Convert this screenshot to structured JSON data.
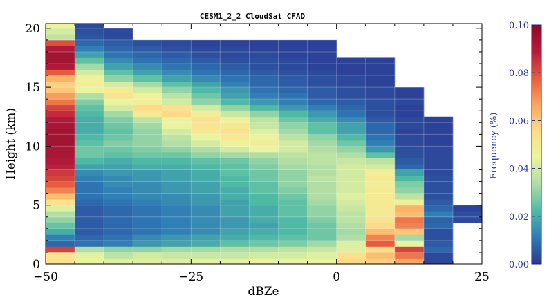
{
  "chart_data": {
    "type": "heatmap",
    "title": "CESM1_2_2 CloudSat CFAD",
    "xlabel": "dBZe",
    "ylabel": "Height (km)",
    "colorbar_label": "Frequency (%)",
    "xlim": [
      -50,
      25
    ],
    "ylim": [
      0,
      20.4
    ],
    "xticks": [
      -50,
      -25,
      0,
      25
    ],
    "xtick_labels": [
      "−50",
      "−25",
      "0",
      "25"
    ],
    "yticks": [
      0,
      5,
      10,
      15,
      20
    ],
    "ytick_labels": [
      "0",
      "5",
      "10",
      "15",
      "20"
    ],
    "colorbar_ticks": [
      0.0,
      0.02,
      0.04,
      0.06,
      0.08,
      0.1
    ],
    "colorbar_tick_labels": [
      "0.00",
      "0.02",
      "0.04",
      "0.06",
      "0.08",
      "0.10"
    ],
    "vmin": 0.0,
    "vmax": 0.1,
    "colormap": "Spectral_r",
    "colormap_stops": [
      "#2b3691",
      "#2e7bb6",
      "#4fbaa5",
      "#aedda5",
      "#ebf59e",
      "#fedc8a",
      "#fba65f",
      "#e65d3f",
      "#b51b3d",
      "#8a0b25"
    ],
    "x_bin_edges": [
      -50,
      -45,
      -40,
      -35,
      -30,
      -25,
      -20,
      -15,
      -10,
      -5,
      0,
      5,
      10,
      15,
      20,
      25
    ],
    "y_bin_edges": [
      0,
      0.5,
      1,
      1.5,
      2,
      2.5,
      3,
      3.5,
      4,
      4.5,
      5,
      5.5,
      6,
      6.5,
      7,
      7.5,
      8,
      8.5,
      9,
      9.5,
      10,
      10.5,
      11,
      11.5,
      12,
      12.5,
      13,
      13.5,
      14,
      14.5,
      15,
      15.5,
      16,
      16.5,
      17,
      17.5,
      18,
      18.5,
      19,
      19.5,
      20,
      20.5
    ],
    "values": [
      [
        0.054,
        0.044,
        0.042,
        0.042,
        0.042,
        0.043,
        0.043,
        0.044,
        0.044,
        0.044,
        0.056,
        0.058,
        0.066,
        0.003,
        null
      ],
      [
        0.052,
        0.043,
        0.036,
        0.04,
        0.038,
        0.038,
        0.038,
        0.04,
        0.04,
        0.042,
        0.054,
        0.062,
        0.074,
        0.003,
        null
      ],
      [
        0.082,
        0.034,
        0.03,
        0.03,
        0.032,
        0.032,
        0.034,
        0.034,
        0.036,
        0.038,
        0.042,
        0.055,
        0.082,
        0.008,
        null
      ],
      [
        0.008,
        0.01,
        0.012,
        0.016,
        0.018,
        0.02,
        0.024,
        0.026,
        0.028,
        0.032,
        0.042,
        0.078,
        0.044,
        0.006,
        null
      ],
      [
        0.012,
        0.008,
        0.01,
        0.014,
        0.016,
        0.018,
        0.02,
        0.022,
        0.024,
        0.026,
        0.034,
        0.072,
        0.032,
        0.004,
        null
      ],
      [
        0.02,
        0.006,
        0.008,
        0.01,
        0.012,
        0.014,
        0.018,
        0.02,
        0.022,
        0.026,
        0.032,
        0.062,
        0.06,
        0.004,
        null
      ],
      [
        0.025,
        0.006,
        0.008,
        0.01,
        0.012,
        0.014,
        0.016,
        0.018,
        0.022,
        0.026,
        0.034,
        0.056,
        0.072,
        0.008,
        null
      ],
      [
        0.03,
        0.006,
        0.008,
        0.01,
        0.012,
        0.014,
        0.016,
        0.02,
        0.022,
        0.028,
        0.036,
        0.052,
        0.074,
        0.007,
        0.003
      ],
      [
        0.034,
        0.006,
        0.008,
        0.01,
        0.012,
        0.014,
        0.018,
        0.02,
        0.024,
        0.03,
        0.036,
        0.05,
        0.062,
        0.012,
        0.004
      ],
      [
        0.042,
        0.006,
        0.008,
        0.01,
        0.012,
        0.014,
        0.018,
        0.02,
        0.024,
        0.03,
        0.038,
        0.05,
        0.064,
        0.008,
        0.002
      ],
      [
        0.054,
        0.008,
        0.01,
        0.012,
        0.014,
        0.016,
        0.018,
        0.022,
        0.024,
        0.032,
        0.04,
        0.05,
        0.048,
        0.006,
        null
      ],
      [
        0.062,
        0.01,
        0.012,
        0.014,
        0.014,
        0.016,
        0.02,
        0.022,
        0.026,
        0.034,
        0.042,
        0.05,
        0.036,
        0.004,
        null
      ],
      [
        0.072,
        0.01,
        0.012,
        0.014,
        0.016,
        0.018,
        0.02,
        0.024,
        0.028,
        0.034,
        0.04,
        0.05,
        0.03,
        0.004,
        null
      ],
      [
        0.078,
        0.01,
        0.014,
        0.014,
        0.016,
        0.018,
        0.022,
        0.024,
        0.03,
        0.034,
        0.04,
        0.048,
        0.028,
        0.004,
        null
      ],
      [
        0.082,
        0.012,
        0.014,
        0.016,
        0.018,
        0.02,
        0.022,
        0.026,
        0.03,
        0.036,
        0.04,
        0.05,
        0.022,
        0.004,
        null
      ],
      [
        0.084,
        0.014,
        0.016,
        0.016,
        0.018,
        0.02,
        0.024,
        0.026,
        0.03,
        0.034,
        0.04,
        0.048,
        0.018,
        0.003,
        null
      ],
      [
        0.088,
        0.018,
        0.018,
        0.02,
        0.02,
        0.022,
        0.024,
        0.028,
        0.032,
        0.034,
        0.04,
        0.04,
        0.008,
        0.003,
        null
      ],
      [
        0.09,
        0.022,
        0.02,
        0.022,
        0.022,
        0.024,
        0.026,
        0.03,
        0.034,
        0.036,
        0.038,
        0.036,
        0.006,
        0.003,
        null
      ],
      [
        0.092,
        0.026,
        0.024,
        0.026,
        0.026,
        0.03,
        0.032,
        0.034,
        0.036,
        0.036,
        0.034,
        0.024,
        0.004,
        0.003,
        null
      ],
      [
        0.092,
        0.026,
        0.026,
        0.028,
        0.03,
        0.034,
        0.04,
        0.044,
        0.04,
        0.034,
        0.03,
        0.016,
        0.004,
        0.003,
        null
      ],
      [
        0.094,
        0.024,
        0.028,
        0.03,
        0.034,
        0.04,
        0.046,
        0.048,
        0.04,
        0.032,
        0.026,
        0.012,
        0.003,
        0.002,
        null
      ],
      [
        0.094,
        0.022,
        0.026,
        0.03,
        0.036,
        0.044,
        0.05,
        0.046,
        0.036,
        0.03,
        0.022,
        0.01,
        0.003,
        0.002,
        null
      ],
      [
        0.094,
        0.02,
        0.024,
        0.03,
        0.04,
        0.05,
        0.054,
        0.042,
        0.032,
        0.024,
        0.018,
        0.008,
        0.002,
        0.002,
        null
      ],
      [
        0.092,
        0.02,
        0.026,
        0.032,
        0.044,
        0.052,
        0.05,
        0.038,
        0.03,
        0.024,
        0.018,
        0.008,
        0.003,
        0.002,
        null
      ],
      [
        0.09,
        0.02,
        0.028,
        0.036,
        0.046,
        0.054,
        0.046,
        0.036,
        0.026,
        0.02,
        0.014,
        0.006,
        0.003,
        0.002,
        null
      ],
      [
        0.086,
        0.022,
        0.032,
        0.05,
        0.056,
        0.048,
        0.038,
        0.03,
        0.022,
        0.016,
        0.01,
        0.004,
        0.002,
        null,
        null
      ],
      [
        0.082,
        0.024,
        0.04,
        0.056,
        0.054,
        0.04,
        0.03,
        0.022,
        0.016,
        0.012,
        0.008,
        0.004,
        0.002,
        null,
        null
      ],
      [
        0.074,
        0.028,
        0.044,
        0.048,
        0.04,
        0.03,
        0.022,
        0.016,
        0.012,
        0.008,
        0.006,
        0.004,
        0.003,
        null,
        null
      ],
      [
        0.068,
        0.034,
        0.052,
        0.046,
        0.036,
        0.026,
        0.018,
        0.012,
        0.01,
        0.006,
        0.004,
        0.003,
        0.002,
        null,
        null
      ],
      [
        0.06,
        0.044,
        0.05,
        0.04,
        0.03,
        0.022,
        0.016,
        0.01,
        0.008,
        0.006,
        0.004,
        0.003,
        0.002,
        null,
        null
      ],
      [
        0.058,
        0.048,
        0.04,
        0.032,
        0.024,
        0.018,
        0.012,
        0.008,
        0.006,
        0.004,
        0.003,
        0.002,
        null,
        null,
        null
      ],
      [
        0.064,
        0.046,
        0.03,
        0.024,
        0.018,
        0.014,
        0.01,
        0.008,
        0.006,
        0.004,
        0.003,
        0.002,
        null,
        null,
        null
      ],
      [
        0.078,
        0.04,
        0.024,
        0.018,
        0.014,
        0.01,
        0.008,
        0.006,
        0.004,
        0.003,
        0.002,
        0.002,
        null,
        null,
        null
      ],
      [
        0.09,
        0.032,
        0.018,
        0.014,
        0.01,
        0.008,
        0.006,
        0.004,
        0.003,
        0.002,
        0.002,
        0.002,
        null,
        null,
        null
      ],
      [
        0.094,
        0.024,
        0.014,
        0.01,
        0.008,
        0.006,
        0.004,
        0.004,
        0.003,
        0.002,
        0.002,
        0.002,
        null,
        null,
        null
      ],
      [
        0.094,
        0.018,
        0.01,
        0.008,
        0.006,
        0.004,
        0.003,
        0.003,
        0.002,
        0.002,
        null,
        null,
        null,
        null,
        null
      ],
      [
        0.09,
        0.012,
        0.008,
        0.006,
        0.004,
        0.003,
        0.003,
        0.002,
        0.002,
        0.002,
        null,
        null,
        null,
        null,
        null
      ],
      [
        0.08,
        0.008,
        0.006,
        0.004,
        0.003,
        0.002,
        0.002,
        0.002,
        0.002,
        0.002,
        null,
        null,
        null,
        null,
        null
      ],
      [
        0.036,
        0.005,
        0.003,
        null,
        null,
        null,
        null,
        null,
        null,
        null,
        null,
        null,
        null,
        null,
        null
      ],
      [
        0.04,
        0.004,
        0.003,
        null,
        null,
        null,
        null,
        null,
        null,
        null,
        null,
        null,
        null,
        null,
        null
      ],
      [
        0.046,
        0.003,
        null,
        null,
        null,
        null,
        null,
        null,
        null,
        null,
        null,
        null,
        null,
        null,
        null
      ],
      [
        0.002,
        null,
        null,
        null,
        null,
        null,
        null,
        null,
        null,
        null,
        null,
        null,
        null,
        null,
        null
      ]
    ],
    "grid": true,
    "legend": "colorbar-right"
  }
}
